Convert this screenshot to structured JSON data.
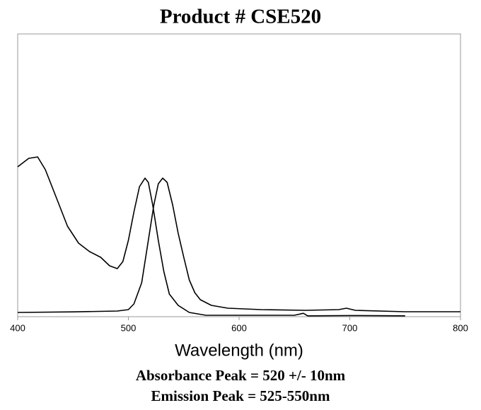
{
  "chart_data": {
    "type": "line",
    "title": "Product # CSE520",
    "x_label": "Wavelength (nm)",
    "annotations": [
      "Absorbance Peak = 520 +/- 10nm",
      "Emission Peak = 525-550nm"
    ],
    "xlim": [
      400,
      800
    ],
    "xticks": [
      400,
      500,
      600,
      700,
      800
    ],
    "ylim": [
      0,
      1
    ],
    "series": [
      {
        "color": "#000000",
        "x": [
          400,
          410,
          418,
          425,
          435,
          445,
          455,
          465,
          475,
          483,
          490,
          495,
          500,
          505,
          510,
          515,
          518,
          522,
          527,
          532,
          537,
          545,
          555,
          570,
          600,
          650,
          658,
          662,
          700,
          750
        ],
        "values": [
          0.53,
          0.56,
          0.565,
          0.52,
          0.42,
          0.32,
          0.26,
          0.23,
          0.21,
          0.18,
          0.17,
          0.195,
          0.27,
          0.37,
          0.46,
          0.49,
          0.475,
          0.395,
          0.27,
          0.16,
          0.08,
          0.04,
          0.015,
          0.005,
          0.005,
          0.005,
          0.012,
          0.003,
          0.004,
          0.003
        ]
      },
      {
        "color": "#000000",
        "x": [
          400,
          450,
          490,
          500,
          505,
          512,
          518,
          523,
          527,
          531,
          535,
          540,
          545,
          550,
          555,
          560,
          565,
          575,
          590,
          620,
          660,
          690,
          697,
          705,
          750,
          800
        ],
        "values": [
          0.015,
          0.017,
          0.02,
          0.025,
          0.045,
          0.12,
          0.27,
          0.395,
          0.47,
          0.49,
          0.475,
          0.395,
          0.295,
          0.21,
          0.13,
          0.085,
          0.06,
          0.04,
          0.03,
          0.025,
          0.0225,
          0.025,
          0.03,
          0.0225,
          0.0175,
          0.0175
        ]
      }
    ]
  }
}
